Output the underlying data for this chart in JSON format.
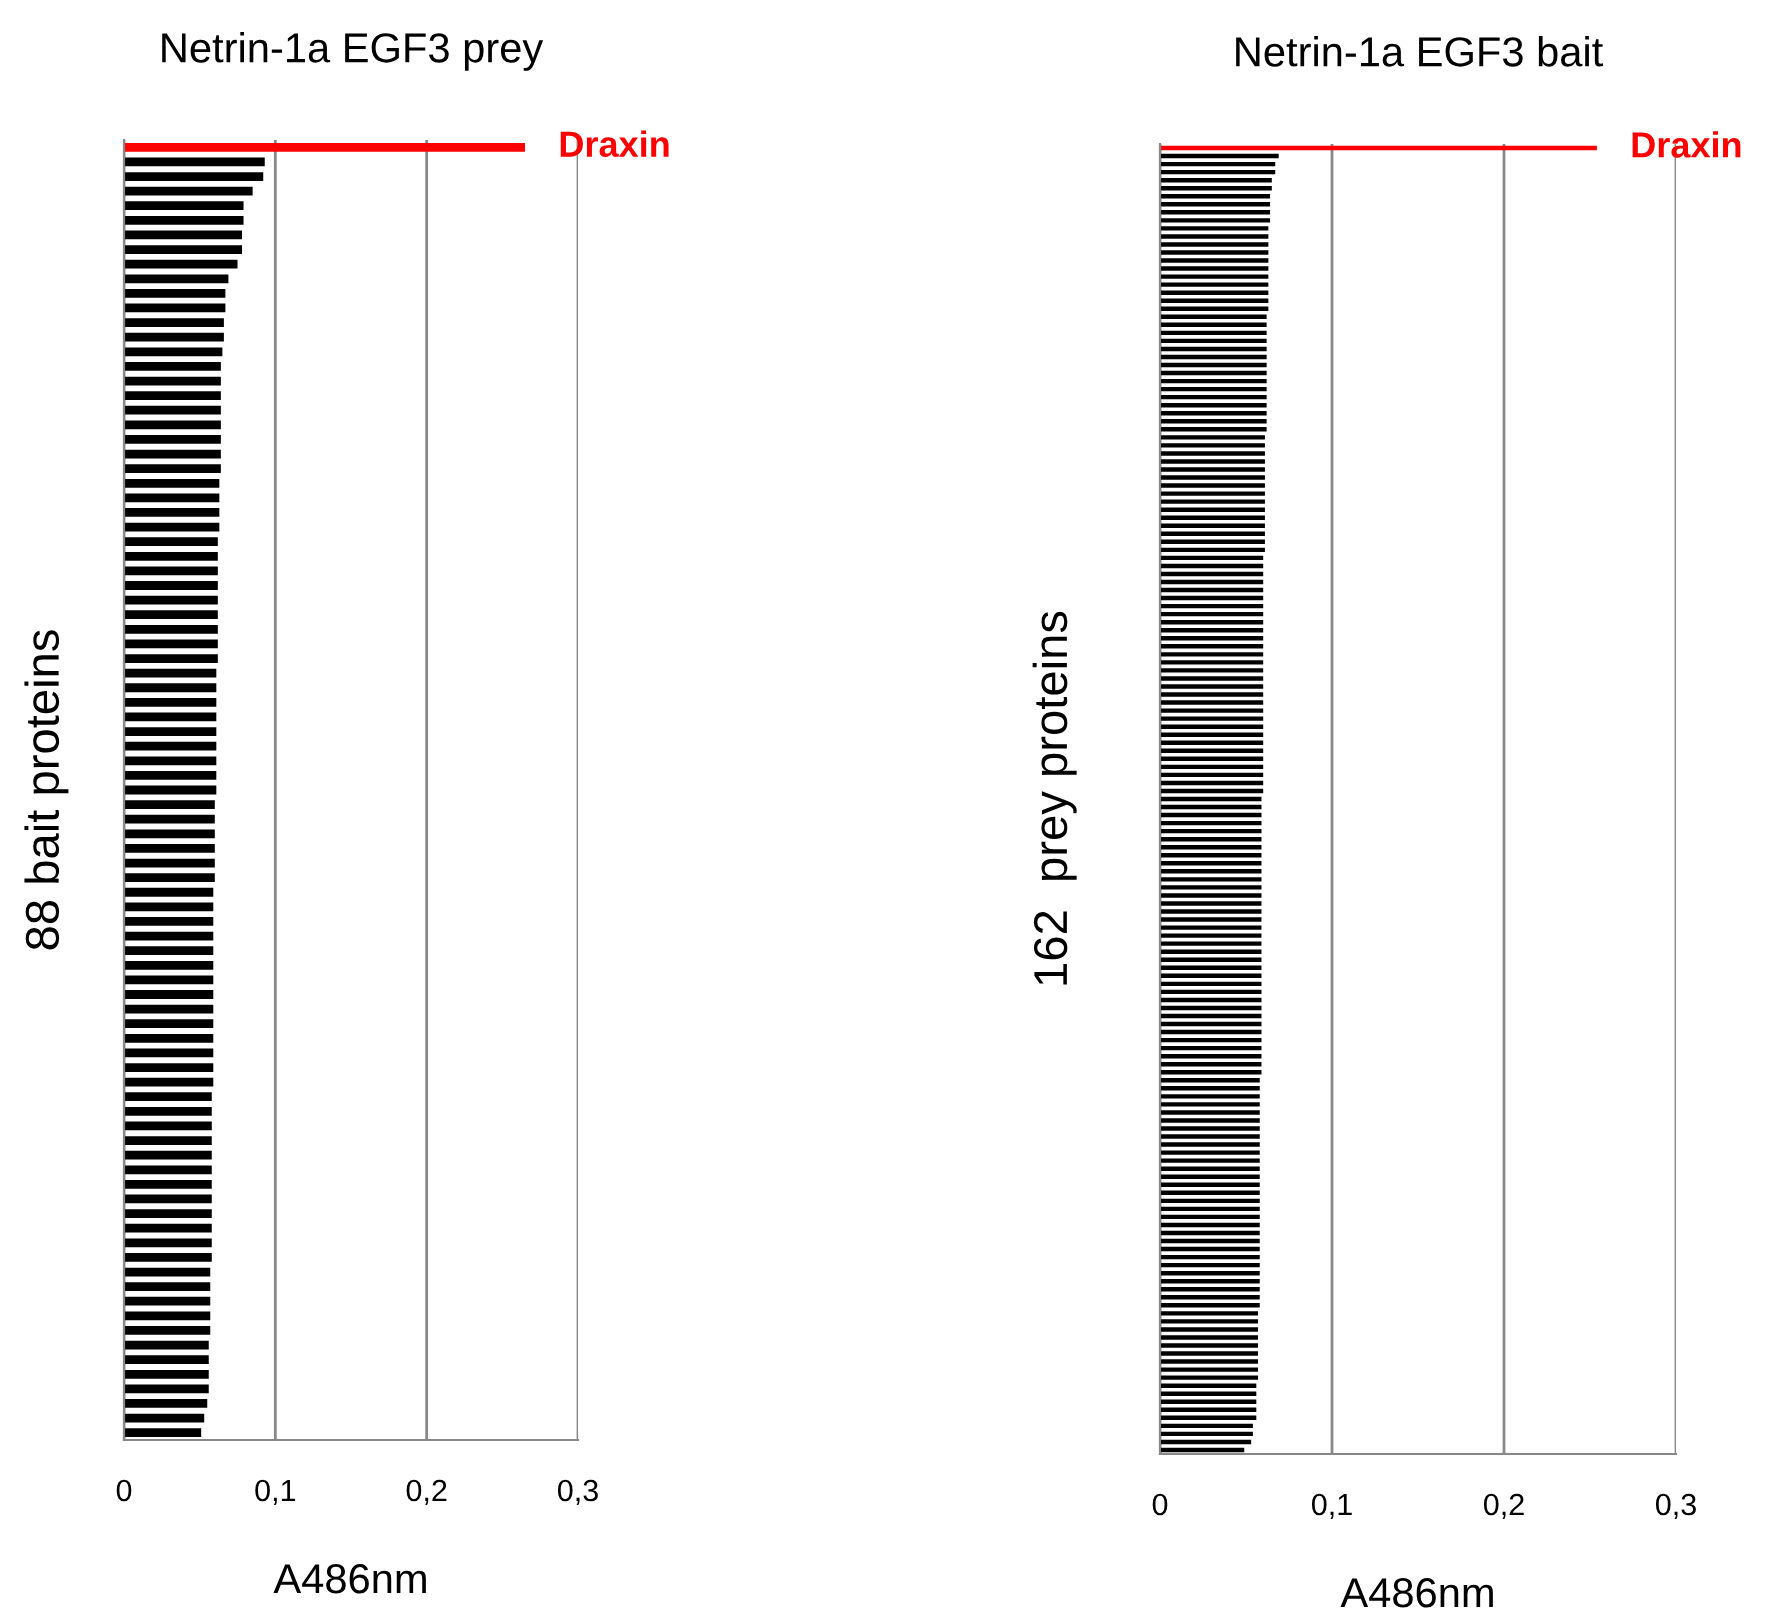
{
  "chart_data": [
    {
      "type": "bar",
      "orientation": "horizontal",
      "title": "Netrin-1a EGF3 prey",
      "xlabel": "A486nm",
      "ylabel": "88 bait proteins",
      "tick_labels": "x",
      "grid": "x",
      "legend": false,
      "categories": [
        null,
        null,
        null,
        null,
        null,
        null,
        null,
        null,
        null,
        null,
        null,
        null,
        null,
        null,
        null,
        null,
        null,
        null,
        null,
        null,
        null,
        null,
        null,
        null,
        null,
        null,
        null,
        null,
        null,
        null,
        null,
        null,
        null,
        null,
        null,
        null,
        null,
        null,
        null,
        null,
        null,
        null,
        null,
        null,
        null,
        null,
        null,
        null,
        null,
        null,
        null,
        null,
        null,
        null,
        null,
        null,
        null,
        null,
        null,
        null,
        null,
        null,
        null,
        null,
        null,
        null,
        null,
        null,
        null,
        null,
        null,
        null,
        null,
        null,
        null,
        null,
        null,
        null,
        null,
        null,
        null,
        null,
        null,
        null,
        null,
        null,
        null,
        null,
        null
      ],
      "values": [
        0.265,
        0.093,
        0.092,
        0.085,
        0.079,
        0.079,
        0.078,
        0.078,
        0.075,
        0.069,
        0.067,
        0.067,
        0.066,
        0.066,
        0.065,
        0.064,
        0.064,
        0.064,
        0.064,
        0.064,
        0.064,
        0.064,
        0.064,
        0.063,
        0.063,
        0.063,
        0.063,
        0.062,
        0.062,
        0.062,
        0.062,
        0.062,
        0.062,
        0.062,
        0.062,
        0.062,
        0.061,
        0.061,
        0.061,
        0.061,
        0.061,
        0.061,
        0.061,
        0.061,
        0.061,
        0.06,
        0.06,
        0.06,
        0.06,
        0.06,
        0.06,
        0.059,
        0.059,
        0.059,
        0.059,
        0.059,
        0.059,
        0.059,
        0.059,
        0.059,
        0.059,
        0.059,
        0.059,
        0.059,
        0.059,
        0.058,
        0.058,
        0.058,
        0.058,
        0.058,
        0.058,
        0.058,
        0.058,
        0.058,
        0.058,
        0.058,
        0.058,
        0.057,
        0.057,
        0.057,
        0.057,
        0.057,
        0.056,
        0.056,
        0.056,
        0.056,
        0.055,
        0.053,
        0.051
      ],
      "colors": [
        "#ff0000",
        "#000000",
        "#000000",
        "#000000",
        "#000000",
        "#000000",
        "#000000",
        "#000000",
        "#000000",
        "#000000",
        "#000000",
        "#000000",
        "#000000",
        "#000000",
        "#000000",
        "#000000",
        "#000000",
        "#000000",
        "#000000",
        "#000000",
        "#000000",
        "#000000",
        "#000000",
        "#000000",
        "#000000",
        "#000000",
        "#000000",
        "#000000",
        "#000000",
        "#000000",
        "#000000",
        "#000000",
        "#000000",
        "#000000",
        "#000000",
        "#000000",
        "#000000",
        "#000000",
        "#000000",
        "#000000",
        "#000000",
        "#000000",
        "#000000",
        "#000000",
        "#000000",
        "#000000",
        "#000000",
        "#000000",
        "#000000",
        "#000000",
        "#000000",
        "#000000",
        "#000000",
        "#000000",
        "#000000",
        "#000000",
        "#000000",
        "#000000",
        "#000000",
        "#000000",
        "#000000",
        "#000000",
        "#000000",
        "#000000",
        "#000000",
        "#000000",
        "#000000",
        "#000000",
        "#000000",
        "#000000",
        "#000000",
        "#000000",
        "#000000",
        "#000000",
        "#000000",
        "#000000",
        "#000000",
        "#000000",
        "#000000",
        "#000000",
        "#000000",
        "#000000",
        "#000000",
        "#000000",
        "#000000",
        "#000000",
        "#000000",
        "#000000",
        "#000000"
      ],
      "xlim": [
        0,
        0.3
      ],
      "xticks": [
        0,
        {
          "value": 0.1,
          "label": "0,1"
        },
        {
          "value": 0.2,
          "label": "0,2"
        },
        {
          "value": 0.3,
          "label": "0,3"
        }
      ],
      "annotations": [
        {
          "text": "Draxin",
          "x": 0.265
        }
      ]
    },
    {
      "type": "bar",
      "orientation": "horizontal",
      "title": "Netrin-1a EGF3 bait",
      "xlabel": "A486nm",
      "ylabel": "162  prey proteins",
      "tick_labels": "x",
      "grid": "x",
      "legend": false,
      "categories": [
        null,
        null,
        null,
        null,
        null,
        null,
        null,
        null,
        null,
        null,
        null,
        null,
        null,
        null,
        null,
        null,
        null,
        null,
        null,
        null,
        null,
        null,
        null,
        null,
        null,
        null,
        null,
        null,
        null,
        null,
        null,
        null,
        null,
        null,
        null,
        null,
        null,
        null,
        null,
        null,
        null,
        null,
        null,
        null,
        null,
        null,
        null,
        null,
        null,
        null,
        null,
        null,
        null,
        null,
        null,
        null,
        null,
        null,
        null,
        null,
        null,
        null,
        null,
        null,
        null,
        null,
        null,
        null,
        null,
        null,
        null,
        null,
        null,
        null,
        null,
        null,
        null,
        null,
        null,
        null,
        null,
        null,
        null,
        null,
        null,
        null,
        null,
        null,
        null,
        null,
        null,
        null,
        null,
        null,
        null,
        null,
        null,
        null,
        null,
        null,
        null,
        null,
        null,
        null,
        null,
        null,
        null,
        null,
        null,
        null,
        null,
        null,
        null,
        null,
        null,
        null,
        null,
        null,
        null,
        null,
        null,
        null,
        null,
        null,
        null,
        null,
        null,
        null,
        null,
        null,
        null,
        null,
        null,
        null,
        null,
        null,
        null,
        null,
        null,
        null,
        null,
        null,
        null,
        null,
        null,
        null,
        null,
        null,
        null,
        null,
        null,
        null,
        null,
        null,
        null,
        null,
        null,
        null,
        null,
        null,
        null,
        null,
        null
      ],
      "values": [
        0.254,
        0.069,
        0.067,
        0.067,
        0.065,
        0.065,
        0.064,
        0.064,
        0.064,
        0.064,
        0.063,
        0.063,
        0.063,
        0.063,
        0.063,
        0.063,
        0.063,
        0.063,
        0.063,
        0.063,
        0.063,
        0.062,
        0.062,
        0.062,
        0.062,
        0.062,
        0.062,
        0.062,
        0.062,
        0.062,
        0.062,
        0.062,
        0.062,
        0.062,
        0.062,
        0.062,
        0.061,
        0.061,
        0.061,
        0.061,
        0.061,
        0.061,
        0.061,
        0.061,
        0.061,
        0.061,
        0.061,
        0.061,
        0.061,
        0.061,
        0.061,
        0.06,
        0.06,
        0.06,
        0.06,
        0.06,
        0.06,
        0.06,
        0.06,
        0.06,
        0.06,
        0.06,
        0.06,
        0.06,
        0.06,
        0.06,
        0.06,
        0.06,
        0.06,
        0.06,
        0.06,
        0.06,
        0.06,
        0.06,
        0.06,
        0.06,
        0.06,
        0.06,
        0.06,
        0.06,
        0.06,
        0.059,
        0.059,
        0.059,
        0.059,
        0.059,
        0.059,
        0.059,
        0.059,
        0.059,
        0.059,
        0.059,
        0.059,
        0.059,
        0.059,
        0.059,
        0.059,
        0.059,
        0.059,
        0.059,
        0.059,
        0.059,
        0.059,
        0.059,
        0.059,
        0.059,
        0.059,
        0.059,
        0.059,
        0.059,
        0.059,
        0.059,
        0.059,
        0.059,
        0.059,
        0.059,
        0.058,
        0.058,
        0.058,
        0.058,
        0.058,
        0.058,
        0.058,
        0.058,
        0.058,
        0.058,
        0.058,
        0.058,
        0.058,
        0.058,
        0.058,
        0.058,
        0.058,
        0.058,
        0.058,
        0.058,
        0.058,
        0.058,
        0.058,
        0.058,
        0.058,
        0.058,
        0.058,
        0.058,
        0.058,
        0.057,
        0.057,
        0.057,
        0.057,
        0.057,
        0.057,
        0.057,
        0.057,
        0.057,
        0.056,
        0.056,
        0.056,
        0.056,
        0.056,
        0.054,
        0.054,
        0.053,
        0.049
      ],
      "colors": [
        "#ff0000",
        "#000000",
        "#000000",
        "#000000",
        "#000000",
        "#000000",
        "#000000",
        "#000000",
        "#000000",
        "#000000",
        "#000000",
        "#000000",
        "#000000",
        "#000000",
        "#000000",
        "#000000",
        "#000000",
        "#000000",
        "#000000",
        "#000000",
        "#000000",
        "#000000",
        "#000000",
        "#000000",
        "#000000",
        "#000000",
        "#000000",
        "#000000",
        "#000000",
        "#000000",
        "#000000",
        "#000000",
        "#000000",
        "#000000",
        "#000000",
        "#000000",
        "#000000",
        "#000000",
        "#000000",
        "#000000",
        "#000000",
        "#000000",
        "#000000",
        "#000000",
        "#000000",
        "#000000",
        "#000000",
        "#000000",
        "#000000",
        "#000000",
        "#000000",
        "#000000",
        "#000000",
        "#000000",
        "#000000",
        "#000000",
        "#000000",
        "#000000",
        "#000000",
        "#000000",
        "#000000",
        "#000000",
        "#000000",
        "#000000",
        "#000000",
        "#000000",
        "#000000",
        "#000000",
        "#000000",
        "#000000",
        "#000000",
        "#000000",
        "#000000",
        "#000000",
        "#000000",
        "#000000",
        "#000000",
        "#000000",
        "#000000",
        "#000000",
        "#000000",
        "#000000",
        "#000000",
        "#000000",
        "#000000",
        "#000000",
        "#000000",
        "#000000",
        "#000000",
        "#000000",
        "#000000",
        "#000000",
        "#000000",
        "#000000",
        "#000000",
        "#000000",
        "#000000",
        "#000000",
        "#000000",
        "#000000",
        "#000000",
        "#000000",
        "#000000",
        "#000000",
        "#000000",
        "#000000",
        "#000000",
        "#000000",
        "#000000",
        "#000000",
        "#000000",
        "#000000",
        "#000000",
        "#000000",
        "#000000",
        "#000000",
        "#000000",
        "#000000",
        "#000000",
        "#000000",
        "#000000",
        "#000000",
        "#000000",
        "#000000",
        "#000000",
        "#000000",
        "#000000",
        "#000000",
        "#000000",
        "#000000",
        "#000000",
        "#000000",
        "#000000",
        "#000000",
        "#000000",
        "#000000",
        "#000000",
        "#000000",
        "#000000",
        "#000000",
        "#000000",
        "#000000",
        "#000000",
        "#000000",
        "#000000",
        "#000000",
        "#000000",
        "#000000",
        "#000000",
        "#000000",
        "#000000",
        "#000000",
        "#000000",
        "#000000",
        "#000000",
        "#000000",
        "#000000",
        "#000000",
        "#000000",
        "#000000",
        "#000000",
        "#000000",
        "#000000"
      ],
      "xlim": [
        0,
        0.3
      ],
      "xticks": [
        0,
        {
          "value": 0.1,
          "label": "0,1"
        },
        {
          "value": 0.2,
          "label": "0,2"
        },
        {
          "value": 0.3,
          "label": "0,3"
        }
      ],
      "annotations": [
        {
          "text": "Draxin",
          "x": 0.254
        }
      ]
    }
  ]
}
